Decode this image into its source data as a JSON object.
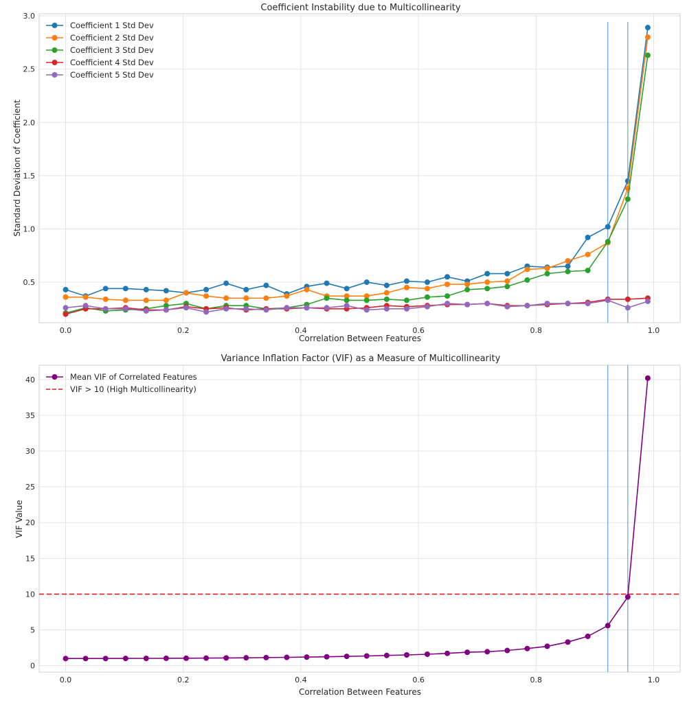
{
  "chart_data": [
    {
      "type": "line",
      "title": "Coefficient Instability due to Multicollinearity",
      "xlabel": "Correlation Between Features",
      "ylabel": "Standard Deviation of Coefficient",
      "xlim": [
        -0.045,
        1.045
      ],
      "ylim": [
        0.12,
        3.02
      ],
      "x_ticks": [
        0.0,
        0.2,
        0.4,
        0.6,
        0.8,
        1.0
      ],
      "x_tick_labels": [
        "0.0",
        "0.2",
        "0.4",
        "0.6",
        "0.8",
        "1.0"
      ],
      "y_ticks": [
        0.5,
        1.0,
        1.5,
        2.0,
        2.5,
        3.0
      ],
      "y_tick_labels": [
        "0.5",
        "1.0",
        "1.5",
        "2.0",
        "2.5",
        "3.0"
      ],
      "grid": true,
      "legend_position": "top-left",
      "vertical_lines": [
        0.922,
        0.956
      ],
      "x": [
        0.0,
        0.034,
        0.068,
        0.102,
        0.137,
        0.171,
        0.205,
        0.239,
        0.273,
        0.307,
        0.341,
        0.376,
        0.41,
        0.444,
        0.478,
        0.512,
        0.546,
        0.58,
        0.615,
        0.649,
        0.683,
        0.717,
        0.751,
        0.785,
        0.819,
        0.854,
        0.888,
        0.922,
        0.956,
        0.99
      ],
      "series": [
        {
          "name": "Coefficient 1 Std Dev",
          "color": "#1f77b4",
          "values": [
            0.43,
            0.37,
            0.44,
            0.44,
            0.43,
            0.42,
            0.4,
            0.43,
            0.49,
            0.43,
            0.47,
            0.39,
            0.46,
            0.49,
            0.44,
            0.5,
            0.47,
            0.51,
            0.5,
            0.55,
            0.51,
            0.58,
            0.58,
            0.65,
            0.64,
            0.65,
            0.92,
            1.02,
            1.45,
            2.89
          ]
        },
        {
          "name": "Coefficient 2 Std Dev",
          "color": "#ff7f0e",
          "values": [
            0.36,
            0.36,
            0.34,
            0.33,
            0.33,
            0.33,
            0.4,
            0.37,
            0.35,
            0.35,
            0.35,
            0.37,
            0.43,
            0.37,
            0.37,
            0.37,
            0.4,
            0.45,
            0.44,
            0.48,
            0.48,
            0.5,
            0.51,
            0.62,
            0.63,
            0.7,
            0.76,
            0.87,
            1.38,
            2.8
          ]
        },
        {
          "name": "Coefficient 3 Std Dev",
          "color": "#2ca02c",
          "values": [
            0.21,
            0.26,
            0.23,
            0.24,
            0.25,
            0.28,
            0.3,
            0.25,
            0.28,
            0.28,
            0.25,
            0.26,
            0.29,
            0.35,
            0.33,
            0.33,
            0.34,
            0.33,
            0.36,
            0.37,
            0.43,
            0.44,
            0.46,
            0.52,
            0.58,
            0.6,
            0.61,
            0.88,
            1.28,
            2.63
          ]
        },
        {
          "name": "Coefficient 4 Std Dev",
          "color": "#d62728",
          "values": [
            0.2,
            0.25,
            0.25,
            0.26,
            0.24,
            0.24,
            0.27,
            0.25,
            0.26,
            0.24,
            0.25,
            0.25,
            0.26,
            0.25,
            0.25,
            0.26,
            0.28,
            0.27,
            0.28,
            0.29,
            0.29,
            0.3,
            0.28,
            0.28,
            0.29,
            0.3,
            0.31,
            0.34,
            0.34,
            0.35
          ]
        },
        {
          "name": "Coefficient 5 Std Dev",
          "color": "#9467bd",
          "values": [
            0.26,
            0.28,
            0.25,
            0.25,
            0.23,
            0.24,
            0.26,
            0.22,
            0.25,
            0.25,
            0.24,
            0.26,
            0.26,
            0.26,
            0.28,
            0.24,
            0.25,
            0.25,
            0.27,
            0.3,
            0.29,
            0.3,
            0.27,
            0.28,
            0.3,
            0.3,
            0.3,
            0.33,
            0.26,
            0.32
          ]
        }
      ]
    },
    {
      "type": "line",
      "title": "Variance Inflation Factor (VIF) as a Measure of Multicollinearity",
      "xlabel": "Correlation Between Features",
      "ylabel": "VIF Value",
      "xlim": [
        -0.045,
        1.045
      ],
      "ylim": [
        -0.9,
        42.0
      ],
      "x_ticks": [
        0.0,
        0.2,
        0.4,
        0.6,
        0.8,
        1.0
      ],
      "x_tick_labels": [
        "0.0",
        "0.2",
        "0.4",
        "0.6",
        "0.8",
        "1.0"
      ],
      "y_ticks": [
        0,
        5,
        10,
        15,
        20,
        25,
        30,
        35,
        40
      ],
      "y_tick_labels": [
        "0",
        "5",
        "10",
        "15",
        "20",
        "25",
        "30",
        "35",
        "40"
      ],
      "grid": true,
      "legend_position": "top-left",
      "vertical_lines": [
        0.922,
        0.956
      ],
      "threshold": {
        "name": "VIF > 10 (High Multicollinearity)",
        "value": 10,
        "color": "#e31a1c"
      },
      "x": [
        0.0,
        0.034,
        0.068,
        0.102,
        0.137,
        0.171,
        0.205,
        0.239,
        0.273,
        0.307,
        0.341,
        0.376,
        0.41,
        0.444,
        0.478,
        0.512,
        0.546,
        0.58,
        0.615,
        0.649,
        0.683,
        0.717,
        0.751,
        0.785,
        0.819,
        0.854,
        0.888,
        0.922,
        0.956,
        0.99
      ],
      "series": [
        {
          "name": "Mean VIF of Correlated Features",
          "color": "#800080",
          "values": [
            1.0,
            1.0,
            1.0,
            1.01,
            1.02,
            1.03,
            1.04,
            1.06,
            1.08,
            1.1,
            1.13,
            1.16,
            1.2,
            1.24,
            1.3,
            1.36,
            1.43,
            1.5,
            1.6,
            1.72,
            1.87,
            1.95,
            2.12,
            2.39,
            2.71,
            3.3,
            4.1,
            5.6,
            9.6,
            40.2
          ]
        }
      ]
    }
  ]
}
